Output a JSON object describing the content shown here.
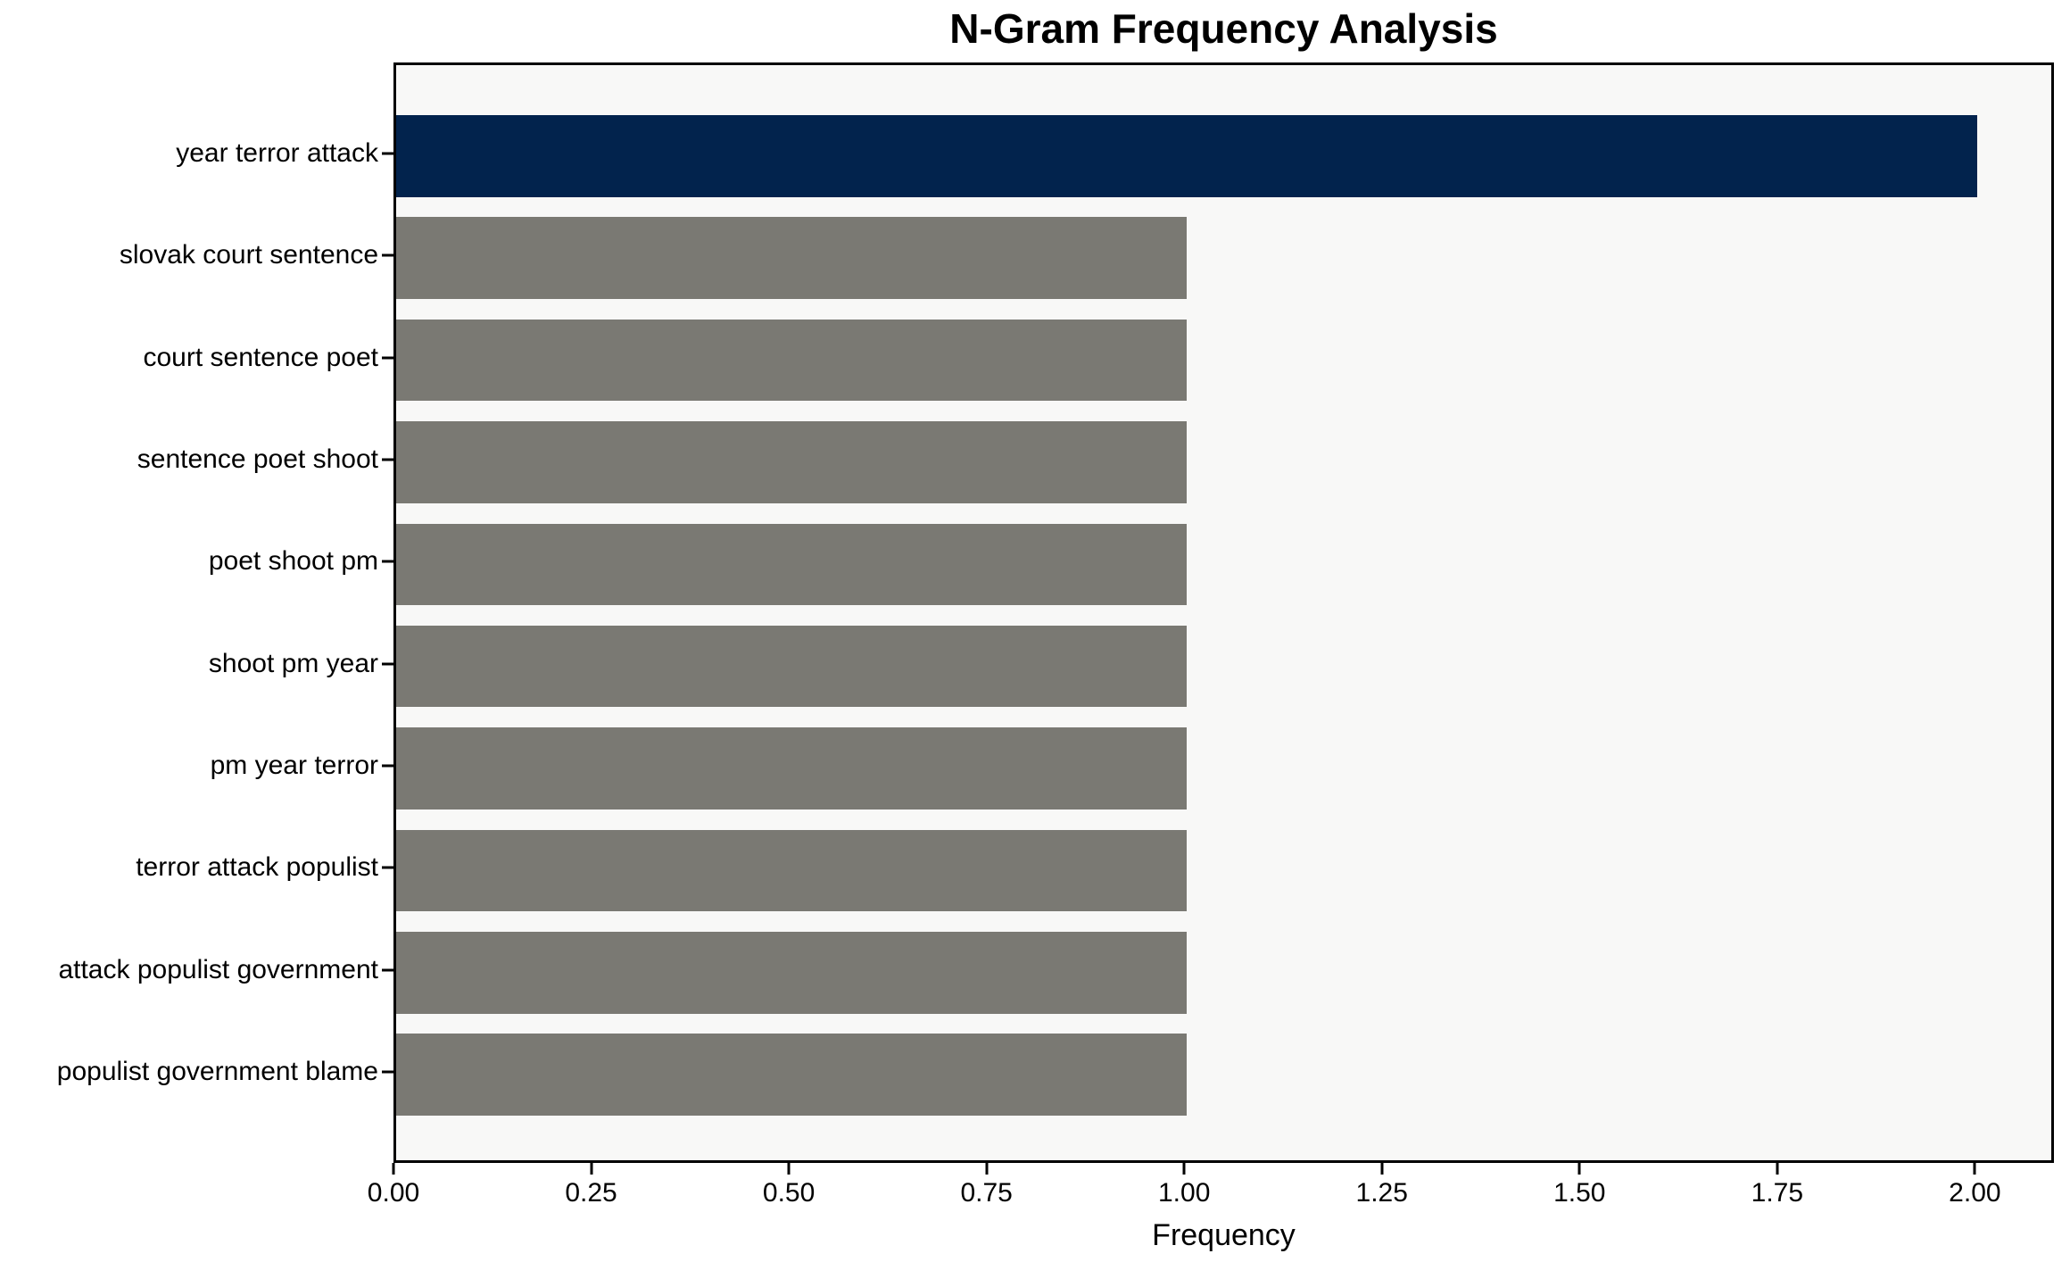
{
  "chart_data": {
    "type": "bar",
    "orientation": "horizontal",
    "title": "N-Gram Frequency Analysis",
    "xlabel": "Frequency",
    "ylabel": "",
    "categories": [
      "year terror attack",
      "slovak court sentence",
      "court sentence poet",
      "sentence poet shoot",
      "poet shoot pm",
      "shoot pm year",
      "pm year terror",
      "terror attack populist",
      "attack populist government",
      "populist government blame"
    ],
    "values": [
      2,
      1,
      1,
      1,
      1,
      1,
      1,
      1,
      1,
      1
    ],
    "bar_colors": [
      "#02234d",
      "#7a7973",
      "#7a7973",
      "#7a7973",
      "#7a7973",
      "#7a7973",
      "#7a7973",
      "#7a7973",
      "#7a7973",
      "#7a7973"
    ],
    "xlim": [
      0,
      2.1
    ],
    "xticks": [
      {
        "value": 0.0,
        "label": "0.00"
      },
      {
        "value": 0.25,
        "label": "0.25"
      },
      {
        "value": 0.5,
        "label": "0.50"
      },
      {
        "value": 0.75,
        "label": "0.75"
      },
      {
        "value": 1.0,
        "label": "1.00"
      },
      {
        "value": 1.25,
        "label": "1.25"
      },
      {
        "value": 1.5,
        "label": "1.50"
      },
      {
        "value": 1.75,
        "label": "1.75"
      },
      {
        "value": 2.0,
        "label": "2.00"
      }
    ],
    "grid": false,
    "legend": false,
    "colors": {
      "highlight_bar": "#02234d",
      "default_bar": "#7a7973",
      "plot_background": "#f8f8f7",
      "figure_background": "#ffffff",
      "spine": "#000000",
      "text": "#000000"
    }
  }
}
